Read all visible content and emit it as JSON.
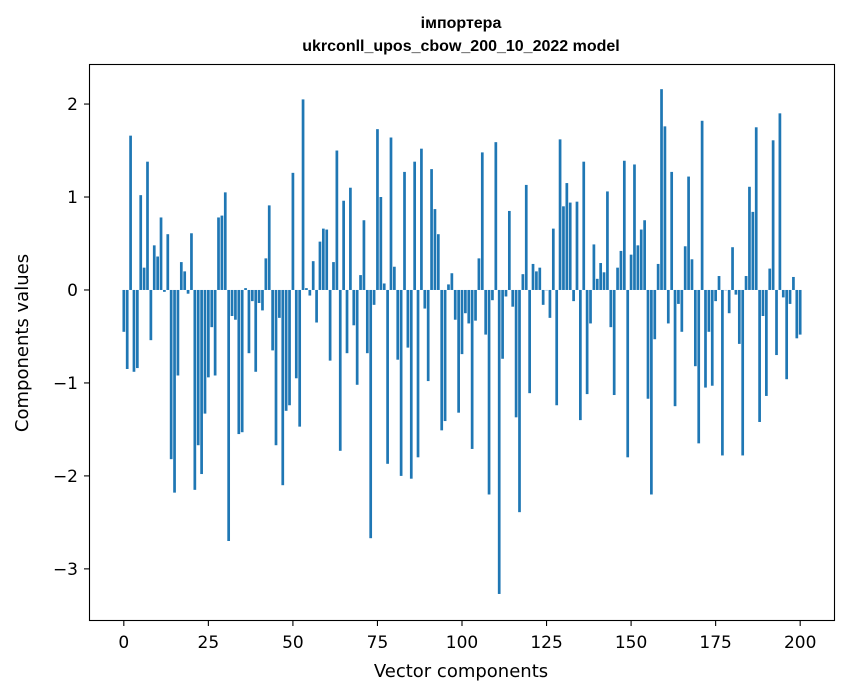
{
  "chart_data": {
    "type": "bar",
    "title": [
      "імпортера",
      "ukrconll_upos_cbow_200_10_2022 model"
    ],
    "xlabel": "Vector components",
    "ylabel": "Components values",
    "xlim": [
      -10,
      210
    ],
    "ylim": [
      -3.55,
      2.42
    ],
    "xticks": [
      0,
      25,
      50,
      75,
      100,
      125,
      150,
      175,
      200
    ],
    "yticks": [
      -3,
      -2,
      -1,
      0,
      1,
      2
    ],
    "grid": false,
    "bar_color": "#1f77b4",
    "values": [
      -0.45,
      -0.85,
      1.66,
      -0.88,
      -0.84,
      1.02,
      0.24,
      1.38,
      -0.54,
      0.48,
      0.36,
      0.78,
      -0.02,
      0.6,
      -1.82,
      -2.18,
      -0.92,
      0.3,
      0.2,
      -0.04,
      0.61,
      -2.15,
      -1.67,
      -1.98,
      -1.33,
      -0.94,
      -0.4,
      -0.92,
      0.78,
      0.8,
      1.05,
      -2.7,
      -0.28,
      -0.32,
      -1.55,
      -1.53,
      0.02,
      -0.68,
      -0.12,
      -0.88,
      -0.14,
      -0.22,
      0.34,
      0.91,
      -0.65,
      -1.67,
      -0.3,
      -2.1,
      -1.3,
      -1.24,
      1.26,
      -0.95,
      -1.47,
      2.05,
      0.02,
      -0.06,
      0.31,
      -0.35,
      0.52,
      0.66,
      0.65,
      -0.76,
      0.3,
      1.5,
      -1.73,
      0.96,
      -0.68,
      1.1,
      -0.38,
      -1.02,
      0.16,
      0.75,
      -0.68,
      -2.67,
      -0.16,
      1.73,
      1.0,
      0.07,
      -1.87,
      1.64,
      0.25,
      -0.75,
      -2.0,
      1.27,
      -0.62,
      -2.03,
      1.38,
      -1.8,
      1.52,
      -0.2,
      -0.98,
      1.3,
      0.87,
      0.6,
      -1.51,
      -1.41,
      0.06,
      0.18,
      -0.32,
      -1.32,
      -0.69,
      -0.25,
      -0.36,
      -1.71,
      -0.33,
      0.34,
      1.48,
      -0.48,
      -2.2,
      -0.11,
      1.59,
      -3.27,
      -0.74,
      -0.07,
      0.85,
      -0.18,
      -1.37,
      -2.39,
      0.17,
      1.13,
      -1.11,
      0.28,
      0.2,
      0.24,
      -0.16,
      0.0,
      -0.3,
      0.66,
      -1.24,
      1.62,
      0.9,
      1.15,
      0.94,
      -0.12,
      0.95,
      -1.4,
      1.38,
      -1.12,
      -0.36,
      0.49,
      0.12,
      0.29,
      0.19,
      1.06,
      -0.4,
      -1.13,
      0.24,
      0.42,
      1.39,
      -1.8,
      0.38,
      1.35,
      0.48,
      0.65,
      0.75,
      -1.17,
      -2.2,
      -0.53,
      0.28,
      2.16,
      1.76,
      -0.36,
      1.27,
      -1.25,
      -0.15,
      -0.45,
      0.47,
      1.22,
      0.33,
      -0.82,
      -1.65,
      1.82,
      -1.05,
      -0.45,
      -1.03,
      -0.12,
      0.15,
      -1.78,
      0.0,
      -0.25,
      0.46,
      -0.05,
      -0.58,
      -1.78,
      0.15,
      1.11,
      0.84,
      1.75,
      -1.42,
      -0.28,
      -1.14,
      0.23,
      1.61,
      -0.7,
      1.9,
      -0.08,
      -0.96,
      -0.15,
      0.14,
      -0.52,
      -0.48
    ]
  }
}
